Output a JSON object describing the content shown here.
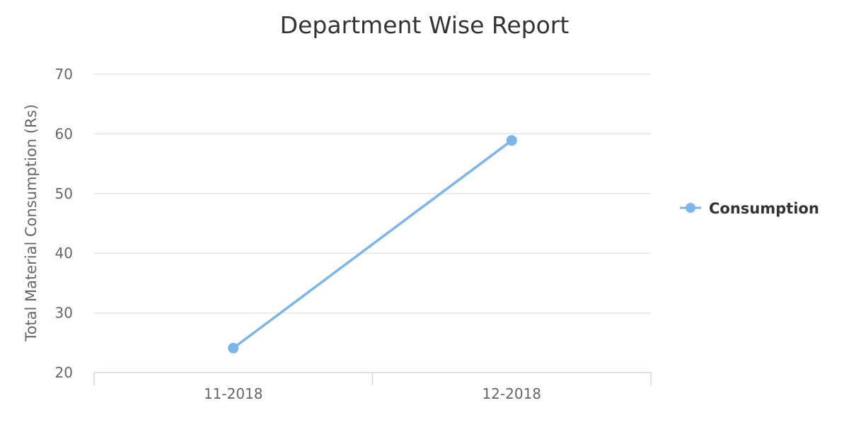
{
  "chart_data": {
    "type": "line",
    "title": "Department Wise Report",
    "xlabel": "",
    "ylabel": "Total Material Consumption (Rs)",
    "categories": [
      "11-2018",
      "12-2018"
    ],
    "series": [
      {
        "name": "Consumption",
        "values": [
          24.1,
          58.9
        ],
        "color": "#7cb5ec"
      }
    ],
    "ylim": [
      20,
      70
    ],
    "yticks": [
      20,
      30,
      40,
      50,
      60,
      70
    ],
    "grid": true,
    "legend_position": "right"
  }
}
